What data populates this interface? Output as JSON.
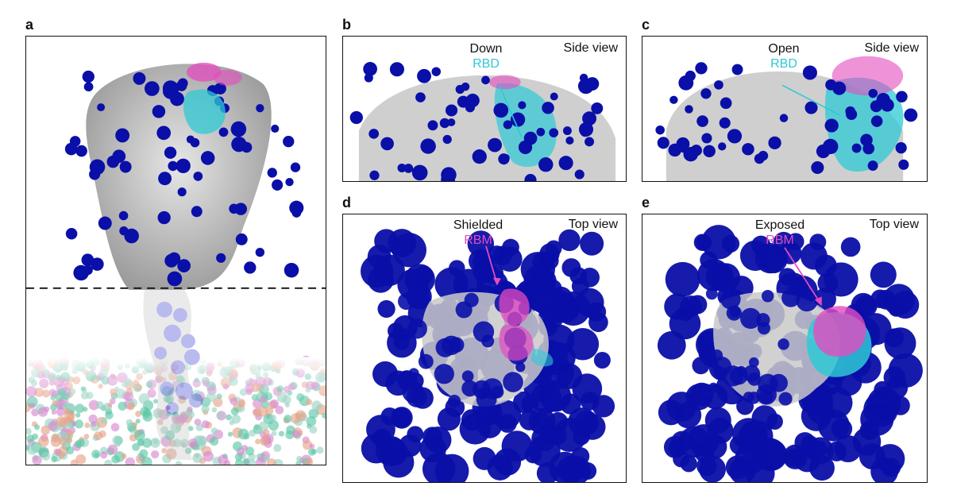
{
  "panels": {
    "a": {
      "label": "a"
    },
    "b": {
      "label": "b",
      "view": "Side view",
      "state": "Down",
      "domain": "RBD"
    },
    "c": {
      "label": "c",
      "view": "Side view",
      "state": "Open",
      "domain": "RBD"
    },
    "d": {
      "label": "d",
      "view": "Top view",
      "state": "Shielded",
      "domain": "RBM"
    },
    "e": {
      "label": "e",
      "view": "Top view",
      "state": "Exposed",
      "domain": "RBM"
    }
  },
  "colors": {
    "glycan": "#0a0fa8",
    "protein": "#c9c9c9",
    "rbd": "#2ec9d6",
    "rbm": "#e44bbf",
    "membrane_mix": [
      "#5fc8a8",
      "#e6a58a",
      "#d78ad0",
      "#9bd4c4"
    ]
  }
}
